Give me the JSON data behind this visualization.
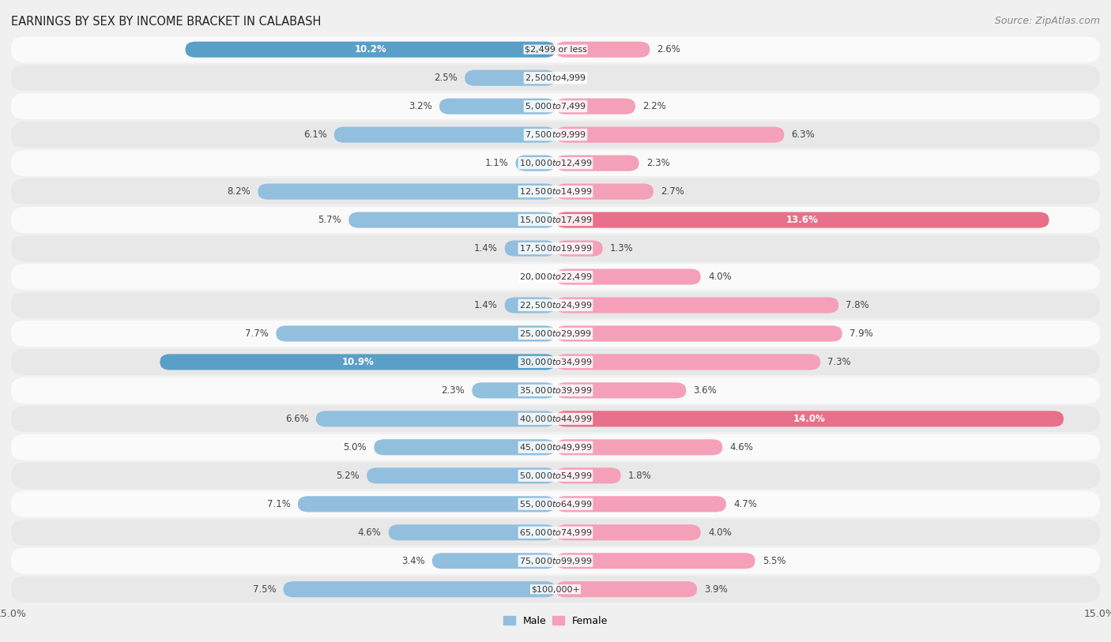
{
  "title": "EARNINGS BY SEX BY INCOME BRACKET IN CALABASH",
  "source": "Source: ZipAtlas.com",
  "categories": [
    "$2,499 or less",
    "$2,500 to $4,999",
    "$5,000 to $7,499",
    "$7,500 to $9,999",
    "$10,000 to $12,499",
    "$12,500 to $14,999",
    "$15,000 to $17,499",
    "$17,500 to $19,999",
    "$20,000 to $22,499",
    "$22,500 to $24,999",
    "$25,000 to $29,999",
    "$30,000 to $34,999",
    "$35,000 to $39,999",
    "$40,000 to $44,999",
    "$45,000 to $49,999",
    "$50,000 to $54,999",
    "$55,000 to $64,999",
    "$65,000 to $74,999",
    "$75,000 to $99,999",
    "$100,000+"
  ],
  "male_values": [
    10.2,
    2.5,
    3.2,
    6.1,
    1.1,
    8.2,
    5.7,
    1.4,
    0.0,
    1.4,
    7.7,
    10.9,
    2.3,
    6.6,
    5.0,
    5.2,
    7.1,
    4.6,
    3.4,
    7.5
  ],
  "female_values": [
    2.6,
    0.0,
    2.2,
    6.3,
    2.3,
    2.7,
    13.6,
    1.3,
    4.0,
    7.8,
    7.9,
    7.3,
    3.6,
    14.0,
    4.6,
    1.8,
    4.7,
    4.0,
    5.5,
    3.9
  ],
  "male_color": "#92bfde",
  "female_color": "#f4a0b8",
  "highlight_male_color": "#5a9fc8",
  "highlight_female_color": "#e8708a",
  "background_color": "#f0f0f0",
  "row_light_color": "#fafafa",
  "row_dark_color": "#e8e8e8",
  "xlim": 15.0,
  "title_fontsize": 10.5,
  "source_fontsize": 9,
  "label_fontsize": 8.5,
  "category_fontsize": 8,
  "axis_label_fontsize": 9
}
